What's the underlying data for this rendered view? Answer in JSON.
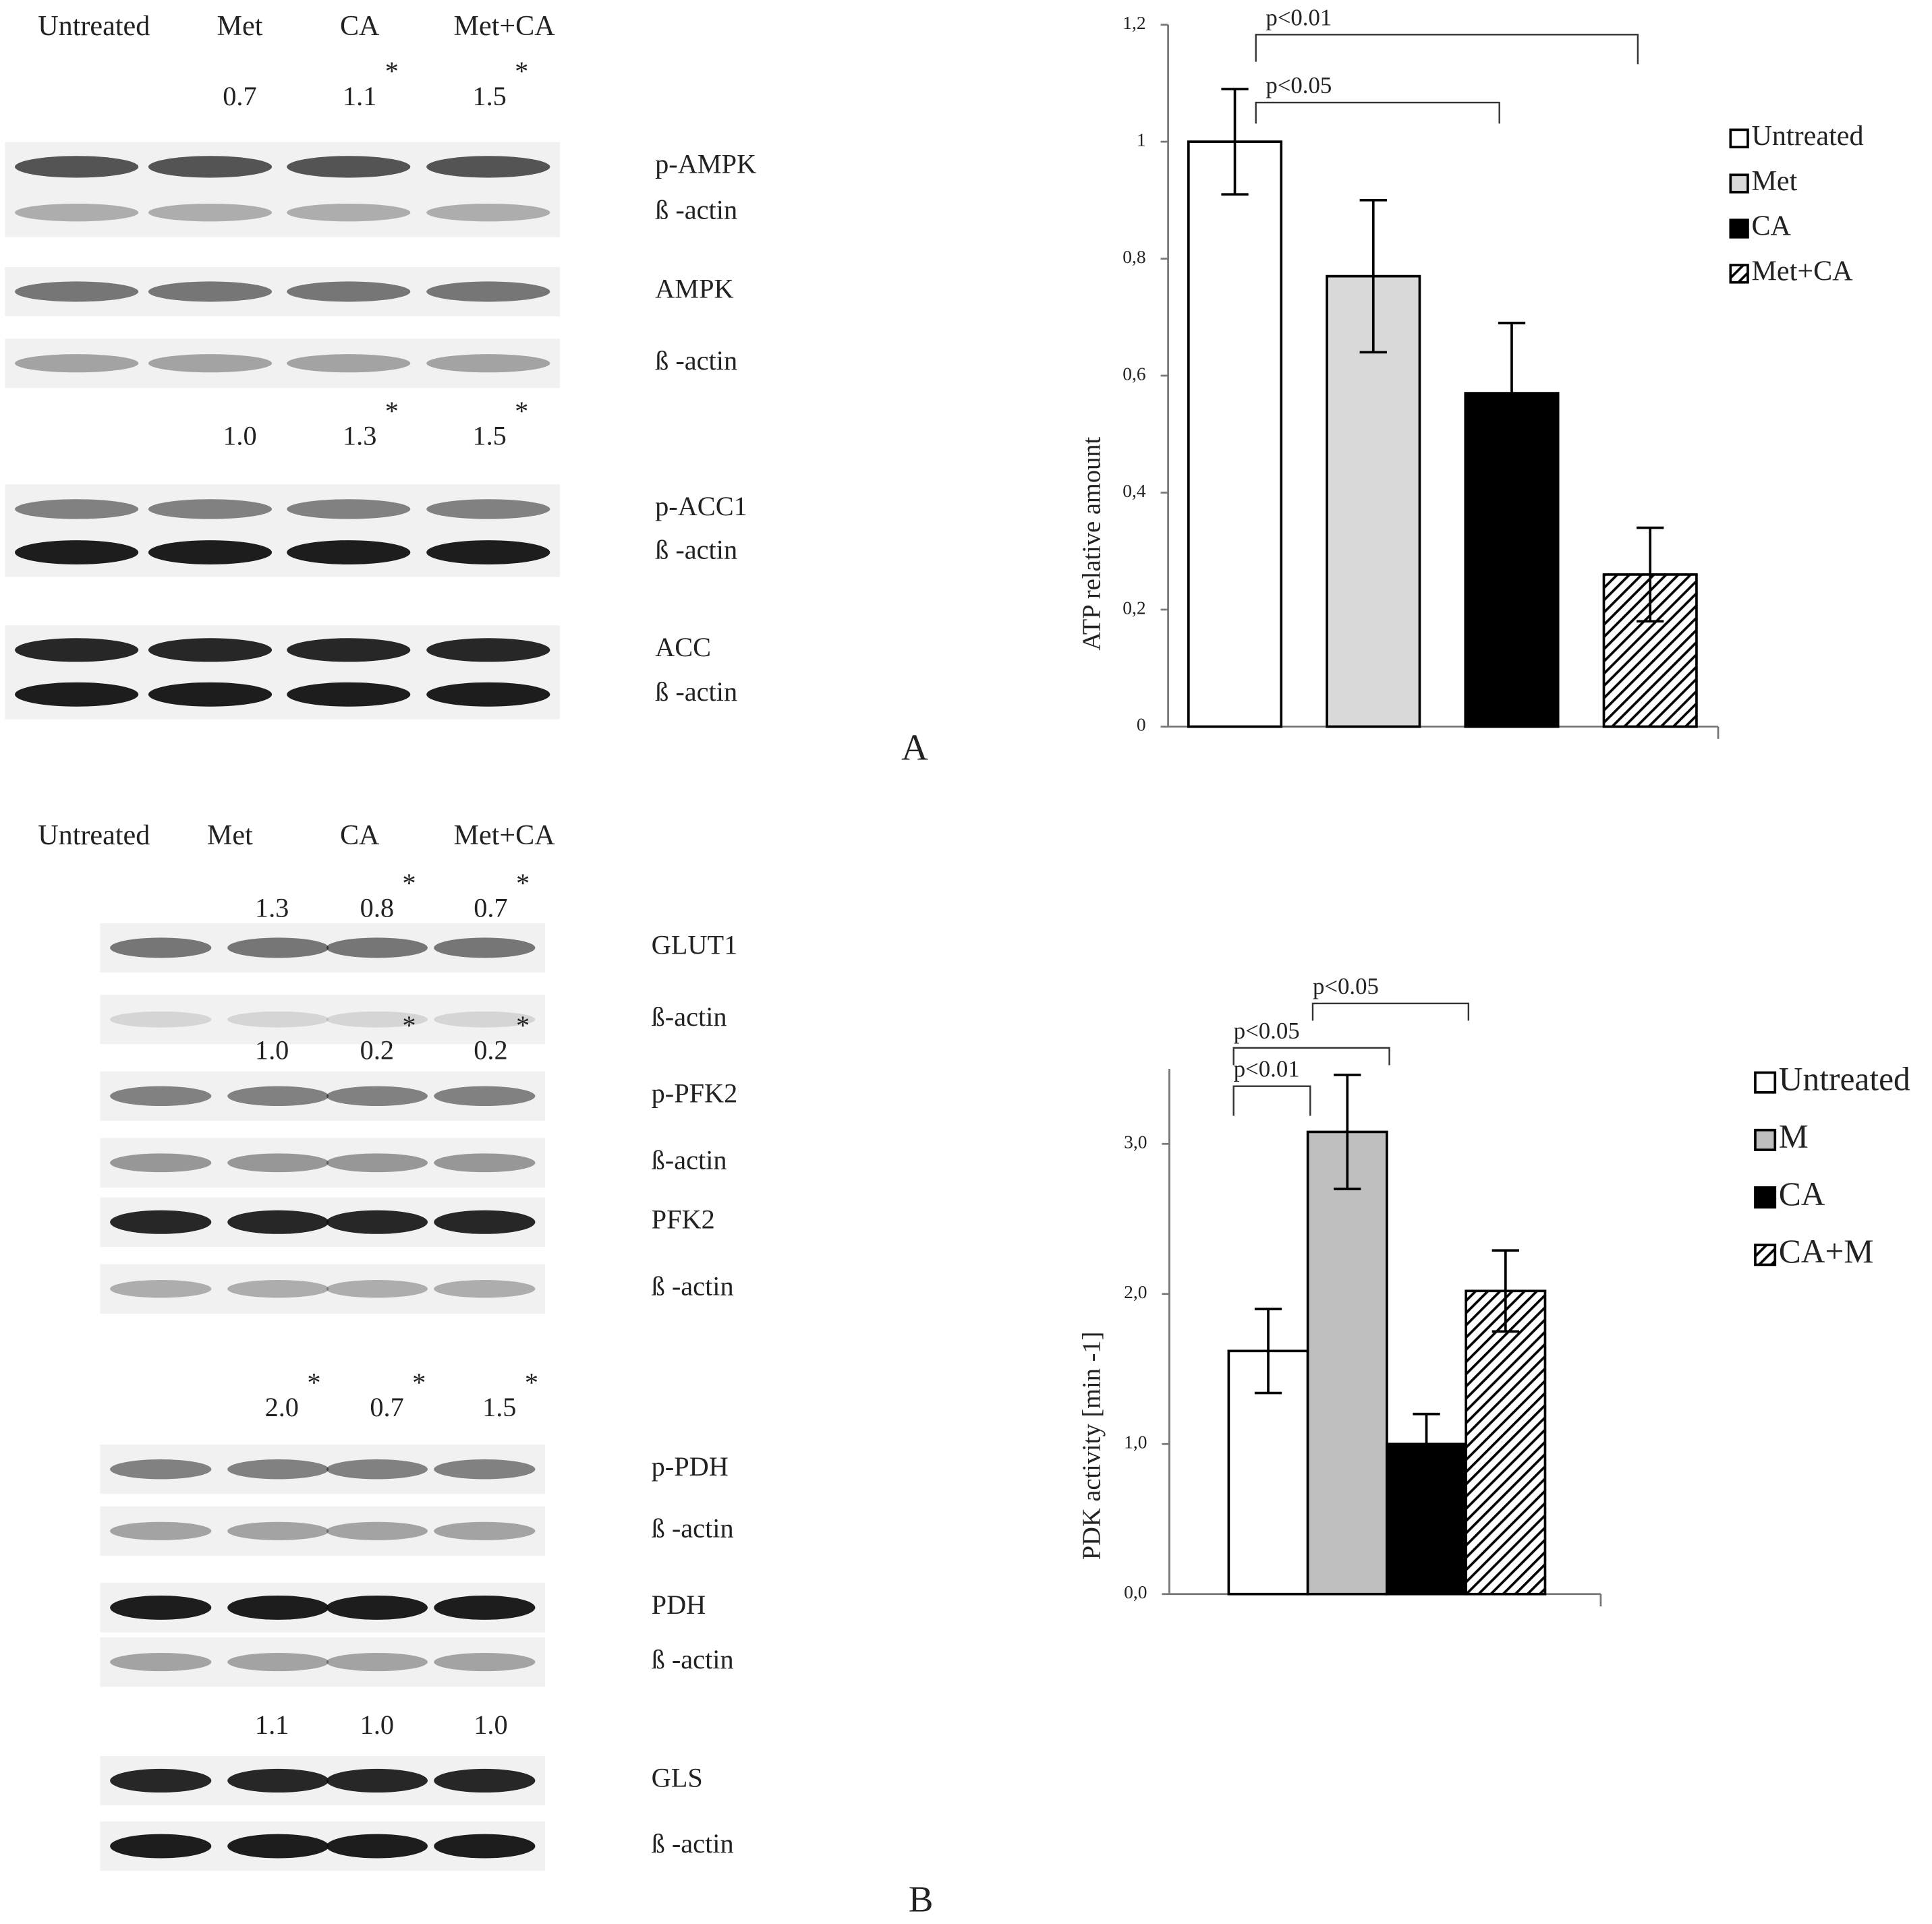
{
  "panels": [
    {
      "label": "A",
      "lanes": [
        "Untreated",
        "Met",
        "CA",
        "Met+CA"
      ],
      "rows": [
        {
          "quant": [
            {
              "text": "0.7"
            },
            {
              "text": "1.1",
              "star": "*"
            },
            {
              "text": "1.5",
              "star": "*"
            }
          ]
        },
        {
          "band": "p-AMPK"
        },
        {
          "band": "ß -actin"
        },
        {
          "band": "AMPK"
        },
        {
          "band": "ß -actin"
        },
        {
          "quant": [
            {
              "text": "1.0"
            },
            {
              "text": "1.3",
              "star": "*"
            },
            {
              "text": "1.5",
              "star": "*"
            }
          ]
        },
        {
          "band": "p-ACC1"
        },
        {
          "band": "ß -actin"
        },
        {
          "band": "ACC"
        },
        {
          "band": "ß -actin"
        }
      ]
    },
    {
      "label": "B",
      "lanes": [
        "Untreated",
        "Met",
        "CA",
        "Met+CA"
      ],
      "rows": [
        {
          "quant": [
            {
              "text": "1.3"
            },
            {
              "text": "0.8",
              "star": "*"
            },
            {
              "text": "0.7",
              "star": "*"
            }
          ]
        },
        {
          "band": "GLUT1"
        },
        {
          "band": "ß-actin"
        },
        {
          "quant": [
            {
              "text": "1.0"
            },
            {
              "text": "0.2",
              "star": "*"
            },
            {
              "text": "0.2",
              "star": "*"
            }
          ]
        },
        {
          "band": "p-PFK2"
        },
        {
          "band": "ß-actin"
        },
        {
          "band": "PFK2"
        },
        {
          "band": "ß -actin"
        },
        {
          "quant": [
            {
              "text": "2.0",
              "star": "*"
            },
            {
              "text": "0.7",
              "star": "*"
            },
            {
              "text": "1.5",
              "star": "*"
            }
          ]
        },
        {
          "band": "p-PDH"
        },
        {
          "band": "ß -actin"
        },
        {
          "band": "PDH"
        },
        {
          "band": "ß -actin"
        },
        {
          "quant": [
            {
              "text": "1.1"
            },
            {
              "text": "1.0"
            },
            {
              "text": "1.0"
            }
          ]
        },
        {
          "band": "GLS"
        },
        {
          "band": "ß -actin"
        }
      ]
    }
  ],
  "chart_data": [
    {
      "type": "bar",
      "ylabel": "ATP relative amount",
      "ylim": [
        0,
        1.2
      ],
      "yticks": [
        0,
        {
          "value": 0.2,
          "label": "0,2"
        },
        {
          "value": 0.4,
          "label": "0,4"
        },
        {
          "value": 0.6,
          "label": "0,6"
        },
        {
          "value": 0.8,
          "label": "0,8"
        },
        1,
        {
          "value": 1.2,
          "label": "1,2"
        }
      ],
      "series": [
        {
          "name": "Untreated",
          "color": "#ffffff",
          "values": [
            1.0
          ],
          "errors": [
            0.09
          ]
        },
        {
          "name": "Met",
          "color": "#d9d9d9",
          "values": [
            0.77
          ],
          "errors": [
            0.13
          ]
        },
        {
          "name": "CA",
          "color": "#000000",
          "values": [
            0.57
          ],
          "errors": [
            0.12
          ]
        },
        {
          "name": "Met+CA",
          "color": "#000000",
          "pattern": "hatch",
          "values": [
            0.26
          ],
          "errors": [
            0.08
          ]
        }
      ],
      "annotations": [
        {
          "text": "p<0.01",
          "between": [
            "Untreated",
            "Met+CA"
          ]
        },
        {
          "text": "p<0.05",
          "between": [
            "Untreated",
            "CA"
          ]
        }
      ]
    },
    {
      "type": "bar",
      "ylabel": "PDK activity [min -1]",
      "ylim": [
        0,
        3.5
      ],
      "yticks": [
        {
          "value": 0,
          "label": "0,0"
        },
        {
          "value": 1,
          "label": "1,0"
        },
        {
          "value": 2,
          "label": "2,0"
        },
        {
          "value": 3,
          "label": "3,0"
        }
      ],
      "series": [
        {
          "name": "Untreated",
          "color": "#ffffff",
          "values": [
            1.62
          ],
          "errors": [
            0.28
          ]
        },
        {
          "name": "M",
          "color": "#bfbfbf",
          "values": [
            3.08
          ],
          "errors": [
            0.38
          ]
        },
        {
          "name": "CA",
          "color": "#000000",
          "values": [
            1.0
          ],
          "errors": [
            0.2
          ]
        },
        {
          "name": "CA+M",
          "color": "#000000",
          "pattern": "hatch",
          "values": [
            2.02
          ],
          "errors": [
            0.27
          ]
        }
      ],
      "annotations": [
        {
          "text": "p<0.01",
          "between": [
            "Untreated",
            "M"
          ]
        },
        {
          "text": "p<0.05",
          "between": [
            "Untreated",
            "CA"
          ]
        },
        {
          "text": "p<0.05",
          "between": [
            "M",
            "CA+M"
          ]
        }
      ]
    }
  ]
}
